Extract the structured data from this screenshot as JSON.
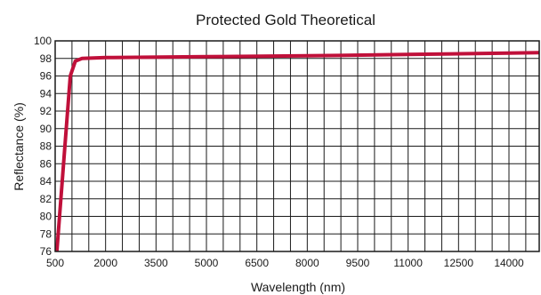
{
  "chart_data": {
    "type": "line",
    "title": "Protected Gold Theoretical",
    "xlabel": "Wavelength (nm)",
    "ylabel": "Reflectance (%)",
    "xlim": [
      500,
      14900
    ],
    "ylim": [
      76,
      100
    ],
    "x_ticks": [
      500,
      2000,
      3500,
      5000,
      6500,
      8000,
      9500,
      11000,
      12500,
      14000
    ],
    "y_ticks": [
      76,
      78,
      80,
      82,
      84,
      86,
      88,
      90,
      92,
      94,
      96,
      98,
      100
    ],
    "x_grid_step": 500,
    "y_grid_step": 2,
    "grid": true,
    "series": [
      {
        "color": "#c0103a",
        "x": [
          550,
          850,
          950,
          1100,
          1300,
          2000,
          5000,
          8000,
          11000,
          14000,
          14900
        ],
        "y": [
          76,
          91,
          96,
          97.7,
          98.0,
          98.1,
          98.2,
          98.3,
          98.45,
          98.6,
          98.65
        ]
      }
    ]
  }
}
